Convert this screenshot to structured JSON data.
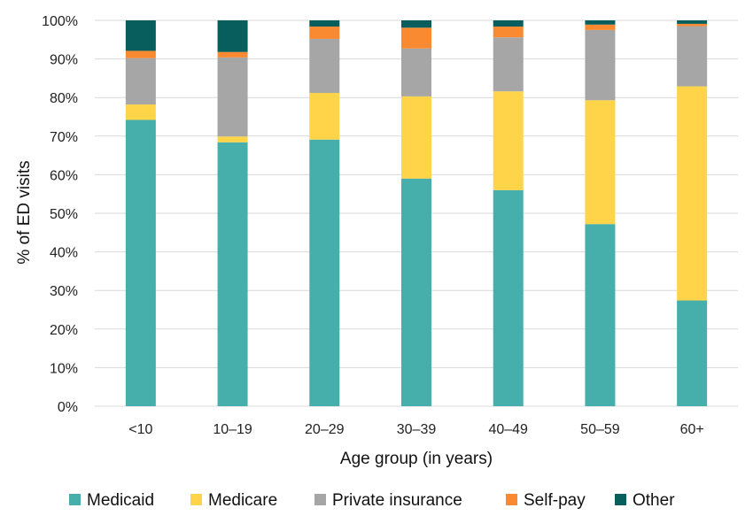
{
  "chart_data": {
    "type": "bar",
    "stacked": true,
    "title": "",
    "xlabel": "Age group (in years)",
    "ylabel": "% of ED visits",
    "ylim": [
      0,
      100
    ],
    "yticks": [
      0,
      10,
      20,
      30,
      40,
      50,
      60,
      70,
      80,
      90,
      100
    ],
    "ytick_suffix": "%",
    "grid": true,
    "legend_position": "bottom",
    "categories": [
      "<10",
      "10–19",
      "20–29",
      "30–39",
      "40–49",
      "50–59",
      "60+"
    ],
    "series": [
      {
        "name": "Medicaid",
        "color": "#46aeab",
        "values": [
          74.2,
          68.4,
          69.1,
          59.0,
          56.0,
          47.2,
          27.4
        ]
      },
      {
        "name": "Medicare",
        "color": "#ffd449",
        "values": [
          4.0,
          1.5,
          12.1,
          21.3,
          25.6,
          32.1,
          55.5
        ]
      },
      {
        "name": "Private insurance",
        "color": "#a6a6a6",
        "values": [
          12.0,
          20.5,
          14.0,
          12.4,
          14.0,
          18.2,
          15.6
        ]
      },
      {
        "name": "Self-pay",
        "color": "#f98a32",
        "values": [
          1.9,
          1.4,
          3.2,
          5.4,
          2.8,
          1.4,
          0.6
        ]
      },
      {
        "name": "Other",
        "color": "#075e5c",
        "values": [
          7.9,
          8.2,
          1.6,
          1.9,
          1.6,
          1.1,
          0.9
        ]
      }
    ]
  }
}
